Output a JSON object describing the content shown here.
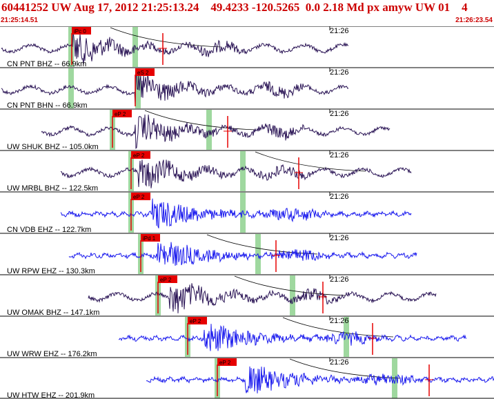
{
  "header": {
    "title": "60441252 UW Aug 17, 2012 21:25:13.24    49.4233 -120.5265  0.0 2.18 Md px amyw UW 01    4",
    "start_time": "21:25:14.51",
    "end_time": "21:26:23.54"
  },
  "minute_label": "21:26",
  "colors": {
    "header_text": "#cc0000",
    "pick_box": "#e60000",
    "short_period": "#1a1aee",
    "broadband": "#2a1455",
    "window": "#9fd89f"
  },
  "traces": [
    {
      "label": "CN PNT BHZ -- 66.9km",
      "pick": "iPc 0",
      "color": "broadband"
    },
    {
      "label": "CN PNT BHN -- 66.9km",
      "pick": "eS 2",
      "color": "broadband"
    },
    {
      "label": "UW SHUK BHZ -- 105.0km",
      "pick": "eP 2",
      "color": "broadband"
    },
    {
      "label": "UW MRBL BHZ -- 122.5km",
      "pick": "eP 2",
      "color": "broadband"
    },
    {
      "label": "CN VDB EHZ -- 122.7km",
      "pick": "eP 2",
      "color": "short_period"
    },
    {
      "label": "UW RPW EHZ -- 130.3km",
      "pick": "iPd 1",
      "color": "short_period"
    },
    {
      "label": "UW OMAK BHZ -- 147.1km",
      "pick": "eP 2",
      "color": "broadband"
    },
    {
      "label": "UW WRW EHZ -- 176.2km",
      "pick": "eP 2",
      "color": "short_period"
    },
    {
      "label": "UW HTW EHZ -- 201.9km",
      "pick": "eP 2",
      "color": "short_period"
    }
  ]
}
